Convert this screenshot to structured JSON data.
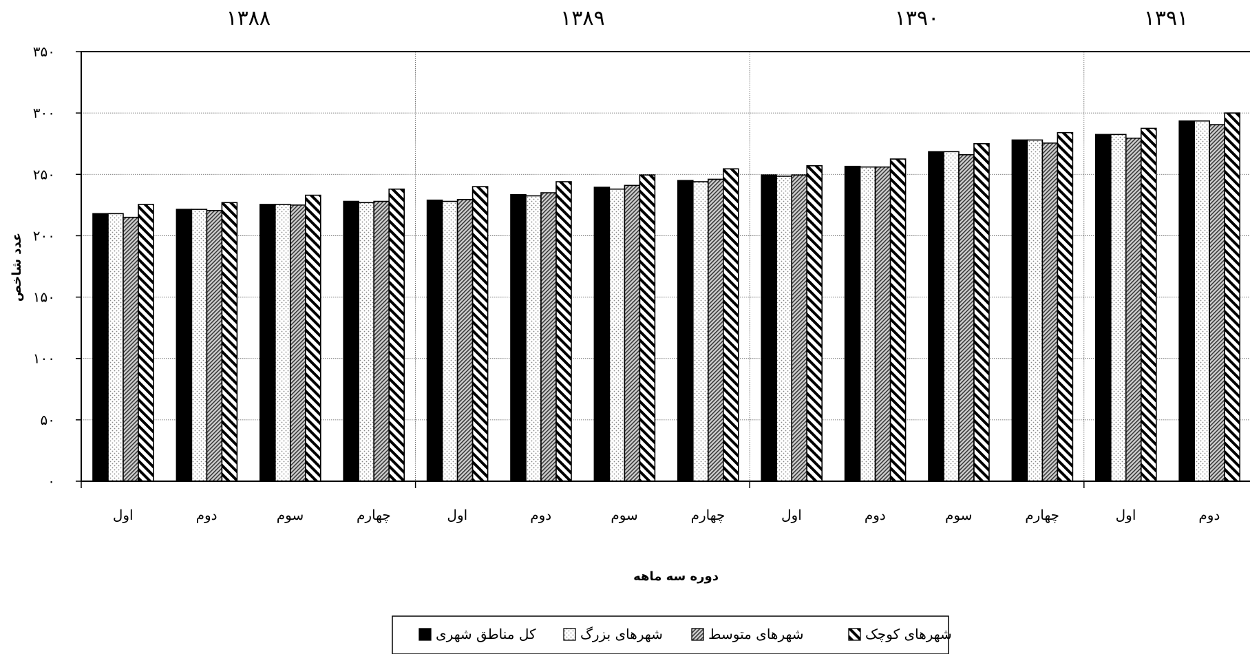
{
  "chart_data": {
    "type": "bar",
    "title": "",
    "xlabel": "دوره سه ماهه",
    "ylabel": "عدد شاخص",
    "ylim": [
      0,
      350
    ],
    "yticks": [
      {
        "value": 0,
        "label": "۰"
      },
      {
        "value": 50,
        "label": "۵۰"
      },
      {
        "value": 100,
        "label": "۱۰۰"
      },
      {
        "value": 150,
        "label": "۱۵۰"
      },
      {
        "value": 200,
        "label": "۲۰۰"
      },
      {
        "value": 250,
        "label": "۲۵۰"
      },
      {
        "value": 300,
        "label": "۳۰۰"
      },
      {
        "value": 350,
        "label": "۳۵۰"
      }
    ],
    "years": [
      {
        "label": "۱۳۸۸",
        "quarters": 4
      },
      {
        "label": "۱۳۸۹",
        "quarters": 4
      },
      {
        "label": "۱۳۹۰",
        "quarters": 4
      },
      {
        "label": "۱۳۹۱",
        "quarters": 2
      }
    ],
    "categories": [
      "اول",
      "دوم",
      "سوم",
      "چهارم",
      "اول",
      "دوم",
      "سوم",
      "چهارم",
      "اول",
      "دوم",
      "سوم",
      "چهارم",
      "اول",
      "دوم"
    ],
    "series": [
      {
        "name": "کل مناطق شهری",
        "pattern": "solid",
        "values": [
          218,
          221.5,
          225.5,
          228,
          229,
          233.5,
          239.5,
          245,
          249.5,
          256.5,
          268.5,
          278,
          282.5,
          293.5
        ]
      },
      {
        "name": "شهرهای بزرگ",
        "pattern": "dotted",
        "values": [
          218,
          221.5,
          225.5,
          227,
          228,
          232.5,
          238,
          244,
          248.5,
          256,
          268.5,
          278,
          282.5,
          293.5
        ]
      },
      {
        "name": "شهرهای متوسط",
        "pattern": "hatch-dense",
        "values": [
          215,
          220.5,
          225,
          228,
          229.5,
          235,
          241,
          246,
          249.5,
          256,
          266,
          275.5,
          279.5,
          290.5
        ]
      },
      {
        "name": "شهرهای کوچک",
        "pattern": "hatch-wide",
        "values": [
          225.5,
          227,
          233,
          238,
          240,
          244,
          249.5,
          254.5,
          257,
          262.5,
          275,
          284,
          287.5,
          300
        ]
      }
    ],
    "grid": true,
    "legend_position": "bottom-center"
  }
}
